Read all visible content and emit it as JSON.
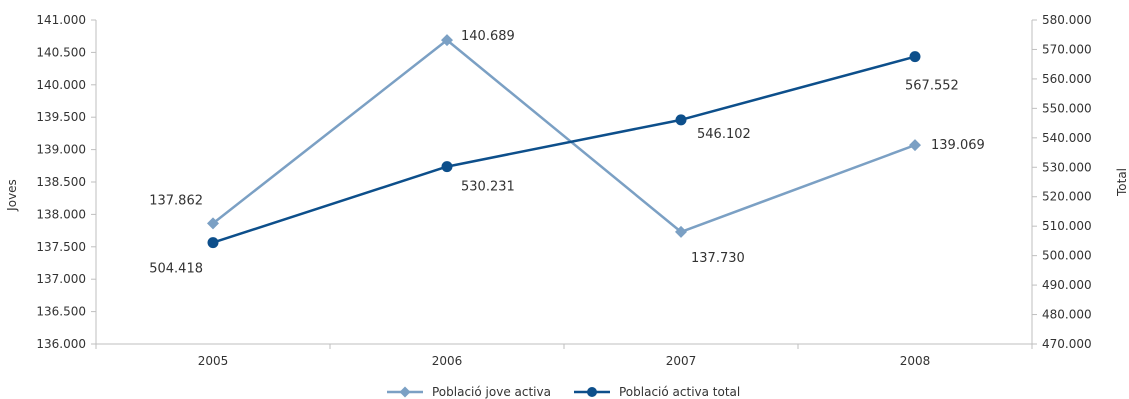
{
  "chart_data": {
    "type": "line",
    "categories": [
      "2005",
      "2006",
      "2007",
      "2008"
    ],
    "y_left": {
      "label": "Joves",
      "lim": [
        136000,
        141000
      ],
      "step": 500,
      "ticks": [
        "136.000",
        "136.500",
        "137.000",
        "137.500",
        "138.000",
        "138.500",
        "139.000",
        "139.500",
        "140.000",
        "140.500",
        "141.000"
      ]
    },
    "y_right": {
      "label": "Total",
      "lim": [
        470000,
        580000
      ],
      "step": 10000,
      "ticks": [
        "470.000",
        "480.000",
        "490.000",
        "500.000",
        "510.000",
        "520.000",
        "530.000",
        "540.000",
        "550.000",
        "560.000",
        "570.000",
        "580.000"
      ]
    },
    "series": [
      {
        "name": "Població jove activa",
        "axis": "left",
        "marker": "diamond",
        "color": "#7ba0c4",
        "values": [
          137862,
          140689,
          137730,
          139069
        ],
        "labels": [
          "137.862",
          "140.689",
          "137.730",
          "139.069"
        ]
      },
      {
        "name": "Població activa total",
        "axis": "right",
        "marker": "circle",
        "color": "#0d4f8b",
        "values": [
          504418,
          530231,
          546102,
          567552
        ],
        "labels": [
          "504.418",
          "530.231",
          "546.102",
          "567.552"
        ]
      }
    ],
    "grid": false,
    "legend_position": "bottom"
  }
}
